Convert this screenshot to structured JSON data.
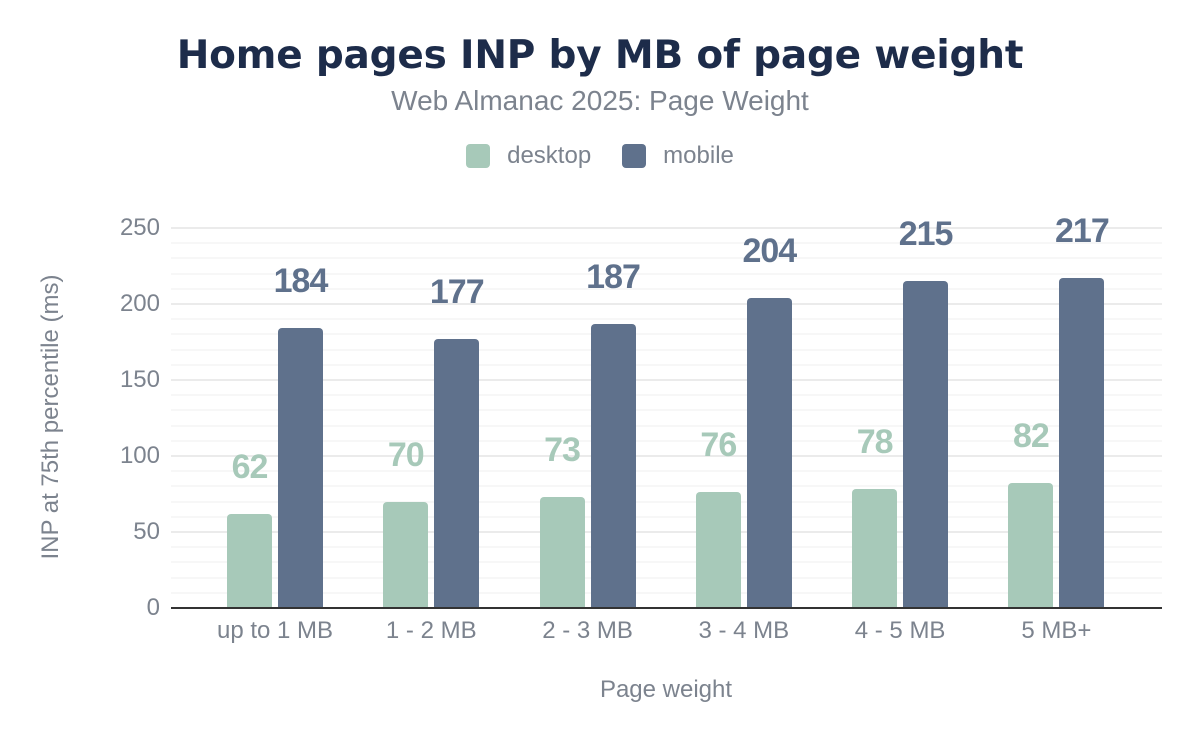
{
  "chart_data": {
    "type": "bar",
    "title": "Home pages INP by MB of page weight",
    "subtitle": "Web Almanac 2025: Page Weight",
    "xlabel": "Page weight",
    "ylabel": "INP at 75th percentile (ms)",
    "categories": [
      "up to 1 MB",
      "1 - 2 MB",
      "2 - 3 MB",
      "3 - 4 MB",
      "4 - 5 MB",
      "5 MB+"
    ],
    "series": [
      {
        "name": "desktop",
        "color": "#a7c9b9",
        "values": [
          62,
          70,
          73,
          76,
          78,
          82
        ]
      },
      {
        "name": "mobile",
        "color": "#5f718c",
        "values": [
          184,
          177,
          187,
          204,
          215,
          217
        ]
      }
    ],
    "ylim": [
      0,
      250
    ],
    "yticks": [
      0,
      50,
      100,
      150,
      200,
      250
    ],
    "minor_grid_step": 10,
    "grid": true,
    "legend_position": "top",
    "data_labels": true,
    "colors": {
      "title": "#1d2c4a",
      "muted_text": "#7c838e",
      "axis_line": "#333333",
      "major_gridline": "#ebebeb",
      "minor_gridline": "#f7f7f7",
      "background": "#ffffff"
    }
  }
}
